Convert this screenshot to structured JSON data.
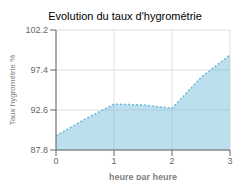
{
  "chart_data": {
    "type": "area",
    "title": "Evolution du taux d'hygrométrie",
    "xlabel": "heure par heure",
    "ylabel": "Taux hygrométrie %",
    "x": [
      0,
      0.5,
      1.0,
      1.5,
      2.0,
      2.5,
      3.0
    ],
    "values": [
      89.5,
      91.5,
      93.3,
      93.2,
      92.8,
      96.5,
      99.2
    ],
    "color": "#6ab8d8",
    "line_style": "dotted",
    "xlim": [
      0,
      3
    ],
    "ylim": [
      87.8,
      102.2
    ],
    "xticks": [
      0,
      1,
      2,
      3
    ],
    "yticks": [
      87.8,
      92.6,
      97.4,
      102.2
    ],
    "grid": true
  }
}
